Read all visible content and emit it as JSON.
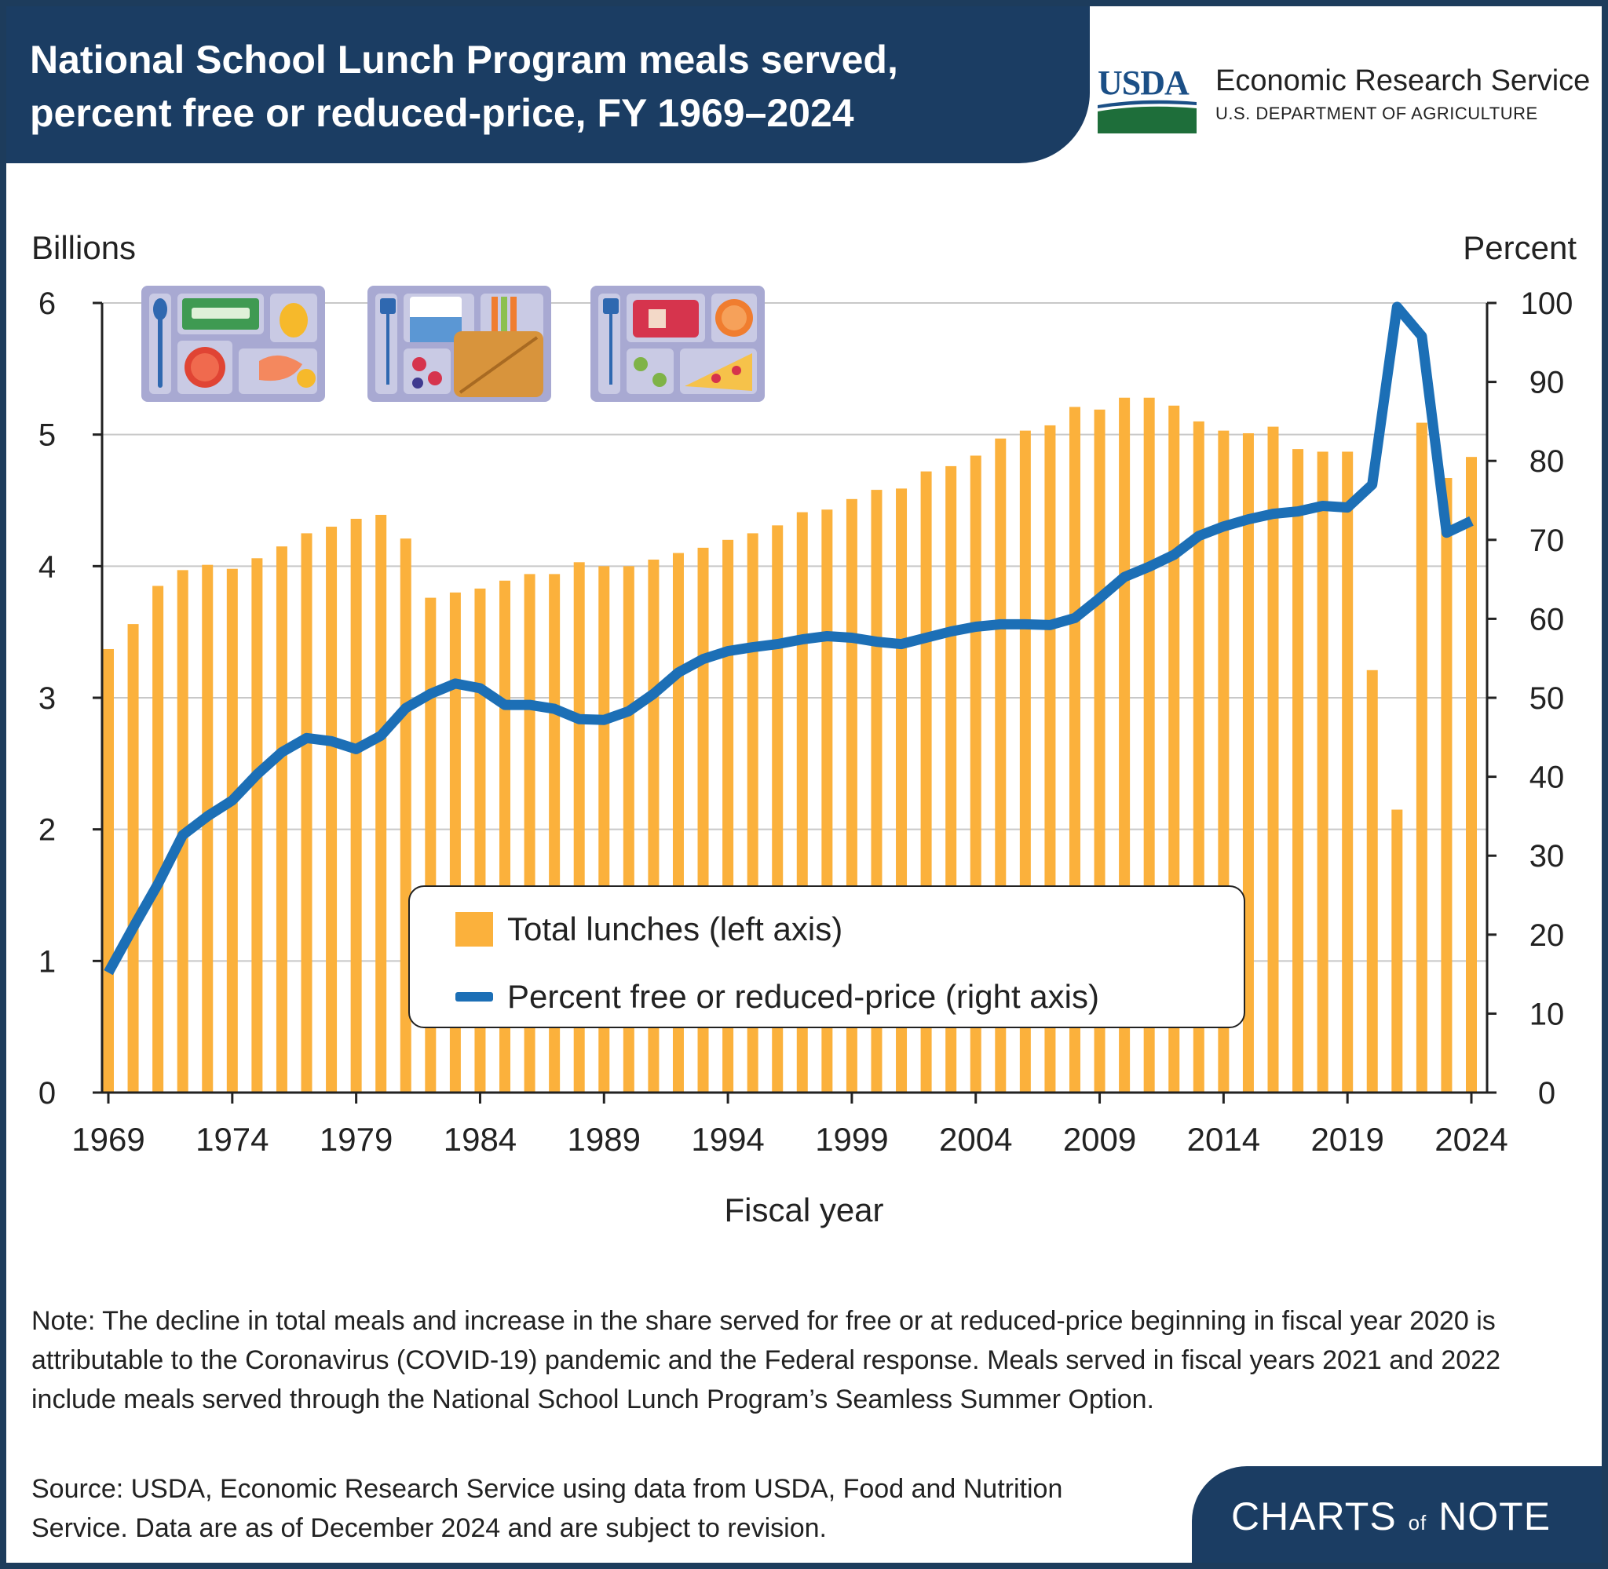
{
  "header": {
    "title_line1": "National School Lunch Program meals served,",
    "title_line2": "percent free or reduced-price, FY 1969–2024"
  },
  "logo": {
    "agency_short": "USDA",
    "agency_name": "Economic Research Service",
    "department": "U.S. DEPARTMENT OF AGRICULTURE"
  },
  "chart_data": {
    "type": "bar",
    "xlabel": "Fiscal year",
    "ylabel_left": "Billions",
    "ylabel_right": "Percent",
    "ylim_left": [
      0,
      6
    ],
    "ylim_right": [
      0,
      100
    ],
    "yticks_left": [
      "0",
      "1",
      "2",
      "3",
      "4",
      "5",
      "6"
    ],
    "yticks_right": [
      "0",
      "10",
      "20",
      "30",
      "40",
      "50",
      "60",
      "70",
      "80",
      "90",
      "100"
    ],
    "xtick_labels": [
      "1969",
      "1974",
      "1979",
      "1984",
      "1989",
      "1994",
      "1999",
      "2004",
      "2009",
      "2014",
      "2019",
      "2024"
    ],
    "grid": "horizontal",
    "legend_placement": "lower-center",
    "x": [
      1969,
      1970,
      1971,
      1972,
      1973,
      1974,
      1975,
      1976,
      1977,
      1978,
      1979,
      1980,
      1981,
      1982,
      1983,
      1984,
      1985,
      1986,
      1987,
      1988,
      1989,
      1990,
      1991,
      1992,
      1993,
      1994,
      1995,
      1996,
      1997,
      1998,
      1999,
      2000,
      2001,
      2002,
      2003,
      2004,
      2005,
      2006,
      2007,
      2008,
      2009,
      2010,
      2011,
      2012,
      2013,
      2014,
      2015,
      2016,
      2017,
      2018,
      2019,
      2020,
      2021,
      2022,
      2023,
      2024
    ],
    "series": [
      {
        "name": "Total lunches (left axis)",
        "type": "bar",
        "axis": "left",
        "color": "#fbb13c",
        "values": [
          3.37,
          3.56,
          3.85,
          3.97,
          4.01,
          3.98,
          4.06,
          4.15,
          4.25,
          4.3,
          4.36,
          4.39,
          4.21,
          3.76,
          3.8,
          3.83,
          3.89,
          3.94,
          3.94,
          4.03,
          4.0,
          4.0,
          4.05,
          4.1,
          4.14,
          4.2,
          4.25,
          4.31,
          4.41,
          4.43,
          4.51,
          4.58,
          4.59,
          4.72,
          4.76,
          4.84,
          4.97,
          5.03,
          5.07,
          5.21,
          5.19,
          5.28,
          5.28,
          5.22,
          5.1,
          5.03,
          5.01,
          5.06,
          4.89,
          4.87,
          4.87,
          3.21,
          2.15,
          5.09,
          4.67,
          4.83
        ]
      },
      {
        "name": "Percent free or reduced-price (right axis)",
        "type": "line",
        "axis": "right",
        "color": "#1c6fb6",
        "values": [
          15.2,
          20.9,
          26.4,
          32.6,
          35.0,
          37.0,
          40.3,
          43.1,
          44.9,
          44.5,
          43.5,
          45.2,
          48.7,
          50.5,
          51.8,
          51.2,
          49.1,
          49.1,
          48.6,
          47.3,
          47.2,
          48.3,
          50.5,
          53.2,
          54.9,
          55.9,
          56.4,
          56.8,
          57.4,
          57.8,
          57.6,
          57.1,
          56.8,
          57.6,
          58.4,
          59.0,
          59.3,
          59.3,
          59.2,
          60.1,
          62.6,
          65.3,
          66.6,
          68.1,
          70.5,
          71.7,
          72.6,
          73.3,
          73.6,
          74.3,
          74.1,
          77.0,
          99.5,
          95.8,
          70.9,
          72.4
        ]
      }
    ]
  },
  "legend": {
    "bar_label": "Total lunches (left axis)",
    "line_label": "Percent free or reduced-price (right axis)"
  },
  "footnote": {
    "note": "Note: The decline in total meals and increase in the share served for free or at reduced-price beginning in fiscal year 2020 is attributable to the Coronavirus (COVID-19) pandemic and the Federal response. Meals served in fiscal years 2021 and 2022 include meals served through the National School Lunch Program’s Seamless Summer Option.",
    "source": "Source: USDA, Economic Research Service using data from USDA, Food and Nutrition Service. Data are as of December 2024 and are subject to revision."
  },
  "branding": {
    "charts": "CHARTS",
    "of": "of",
    "note": "NOTE"
  },
  "icons": [
    "lunch-tray-spoon-soup-icon",
    "lunch-tray-milk-sandwich-icon",
    "lunch-tray-pizza-orange-icon"
  ]
}
